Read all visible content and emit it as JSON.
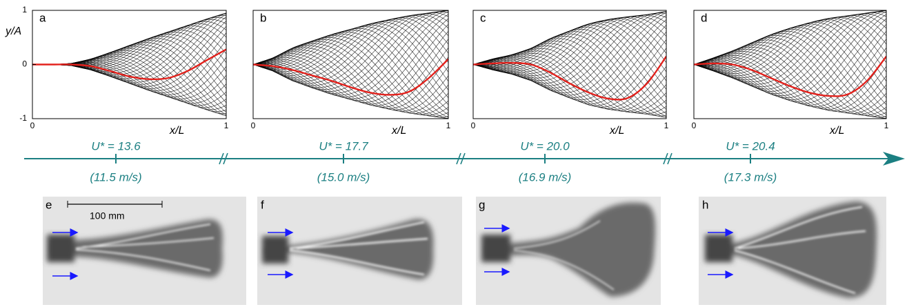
{
  "chart_data": [
    {
      "type": "line",
      "panel_label": "a",
      "y_label": "y/A",
      "x_label": "x/L",
      "xlim": [
        0,
        1
      ],
      "ylim": [
        -1,
        1
      ],
      "xticks": [
        0,
        1
      ],
      "yticks": [
        1,
        0,
        -1
      ],
      "x": [
        0,
        0.1,
        0.2,
        0.3,
        0.4,
        0.5,
        0.6,
        0.7,
        0.8,
        0.9,
        1
      ],
      "series": [
        {
          "color": "#e3211c",
          "values": [
            0,
            0,
            0,
            -0.03,
            -0.12,
            -0.22,
            -0.27,
            -0.25,
            -0.12,
            0.08,
            0.28
          ]
        },
        {
          "color": "#000000",
          "values": [
            0,
            0,
            0.02,
            0.1,
            0.22,
            0.35,
            0.48,
            0.6,
            0.72,
            0.84,
            0.95
          ]
        }
      ]
    },
    {
      "type": "line",
      "panel_label": "b",
      "x_label": "x/L",
      "xlim": [
        0,
        1
      ],
      "ylim": [
        -1,
        1
      ],
      "xticks": [
        0,
        1
      ],
      "x": [
        0,
        0.1,
        0.2,
        0.3,
        0.4,
        0.5,
        0.6,
        0.7,
        0.8,
        0.9,
        1
      ],
      "series": [
        {
          "color": "#e3211c",
          "values": [
            0,
            -0.03,
            -0.1,
            -0.2,
            -0.3,
            -0.42,
            -0.52,
            -0.56,
            -0.5,
            -0.25,
            0.1
          ]
        },
        {
          "color": "#000000",
          "values": [
            0,
            0.12,
            0.3,
            0.43,
            0.55,
            0.65,
            0.75,
            0.83,
            0.9,
            0.95,
            1
          ]
        }
      ]
    },
    {
      "type": "line",
      "panel_label": "c",
      "x_label": "x/L",
      "xlim": [
        0,
        1
      ],
      "ylim": [
        -1,
        1
      ],
      "xticks": [
        0,
        1
      ],
      "x": [
        0,
        0.1,
        0.2,
        0.3,
        0.4,
        0.5,
        0.6,
        0.7,
        0.8,
        0.9,
        1
      ],
      "series": [
        {
          "color": "#e3211c",
          "values": [
            0,
            0.02,
            0.03,
            0,
            -0.15,
            -0.35,
            -0.52,
            -0.63,
            -0.62,
            -0.35,
            0.15
          ]
        },
        {
          "color": "#000000",
          "values": [
            0,
            0.1,
            0.18,
            0.3,
            0.48,
            0.62,
            0.75,
            0.83,
            0.88,
            0.92,
            0.98
          ]
        }
      ]
    },
    {
      "type": "line",
      "panel_label": "d",
      "x_label": "x/L",
      "xlim": [
        0,
        1
      ],
      "ylim": [
        -1,
        1
      ],
      "xticks": [
        0,
        1
      ],
      "x": [
        0,
        0.1,
        0.2,
        0.3,
        0.4,
        0.5,
        0.6,
        0.7,
        0.8,
        0.9,
        1
      ],
      "series": [
        {
          "color": "#e3211c",
          "values": [
            0,
            0.02,
            0,
            -0.1,
            -0.25,
            -0.4,
            -0.52,
            -0.58,
            -0.55,
            -0.3,
            0.15
          ]
        },
        {
          "color": "#000000",
          "values": [
            0,
            0.12,
            0.25,
            0.4,
            0.55,
            0.67,
            0.77,
            0.85,
            0.9,
            0.95,
            1
          ]
        }
      ]
    }
  ],
  "timeline": [
    {
      "reduced": "U* = 13.6",
      "speed": "(11.5 m/s)"
    },
    {
      "reduced": "U* = 17.7",
      "speed": "(15.0 m/s)"
    },
    {
      "reduced": "U* = 20.0",
      "speed": "(16.9 m/s)"
    },
    {
      "reduced": "U* = 20.4",
      "speed": "(17.3 m/s)"
    }
  ],
  "photos": [
    {
      "label": "e"
    },
    {
      "label": "f"
    },
    {
      "label": "g"
    },
    {
      "label": "h"
    }
  ],
  "scale_bar": "100 mm"
}
